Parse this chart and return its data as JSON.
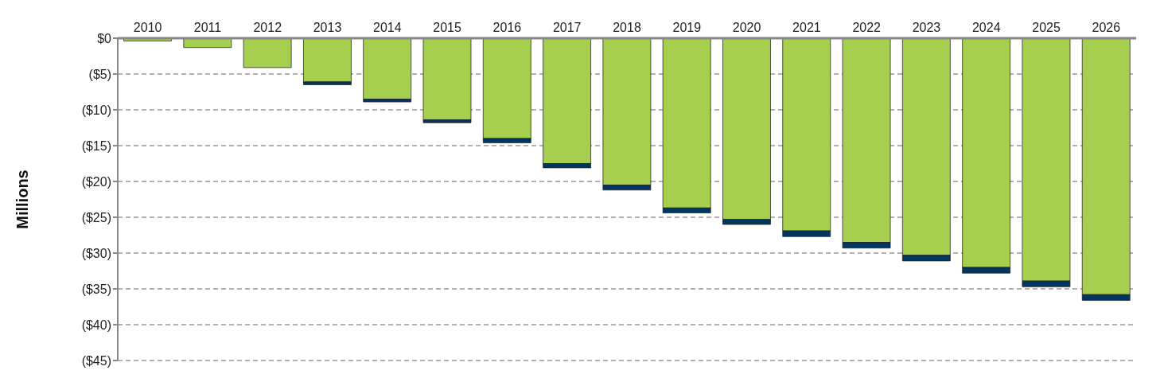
{
  "chart_data": {
    "type": "bar",
    "ylabel": "Millions",
    "stacked": true,
    "grid": "y",
    "categories": [
      "2010",
      "2011",
      "2012",
      "2013",
      "2014",
      "2015",
      "2016",
      "2017",
      "2018",
      "2019",
      "2020",
      "2021",
      "2022",
      "2023",
      "2024",
      "2025",
      "2026"
    ],
    "series": [
      {
        "color": "#a6ce4f",
        "values": [
          -0.4,
          -1.3,
          -4.1,
          -6.1,
          -8.5,
          -11.4,
          -14.0,
          -17.5,
          -20.5,
          -23.7,
          -25.3,
          -26.9,
          -28.5,
          -30.3,
          -32.0,
          -33.9,
          -35.8
        ]
      },
      {
        "color": "#003660",
        "values": [
          0,
          0,
          0,
          -0.4,
          -0.4,
          -0.4,
          -0.6,
          -0.6,
          -0.7,
          -0.7,
          -0.7,
          -0.8,
          -0.8,
          -0.8,
          -0.8,
          -0.8,
          -0.8
        ]
      }
    ],
    "ylim": [
      -45,
      0
    ],
    "yticks": [
      {
        "value": 0,
        "label": "$0"
      },
      {
        "value": -5,
        "label": "($5)"
      },
      {
        "value": -10,
        "label": "($10)"
      },
      {
        "value": -15,
        "label": "($15)"
      },
      {
        "value": -20,
        "label": "($20)"
      },
      {
        "value": -25,
        "label": "($25)"
      },
      {
        "value": -30,
        "label": "($30)"
      },
      {
        "value": -35,
        "label": "($35)"
      },
      {
        "value": -40,
        "label": "($40)"
      },
      {
        "value": -45,
        "label": "($45)"
      }
    ]
  }
}
